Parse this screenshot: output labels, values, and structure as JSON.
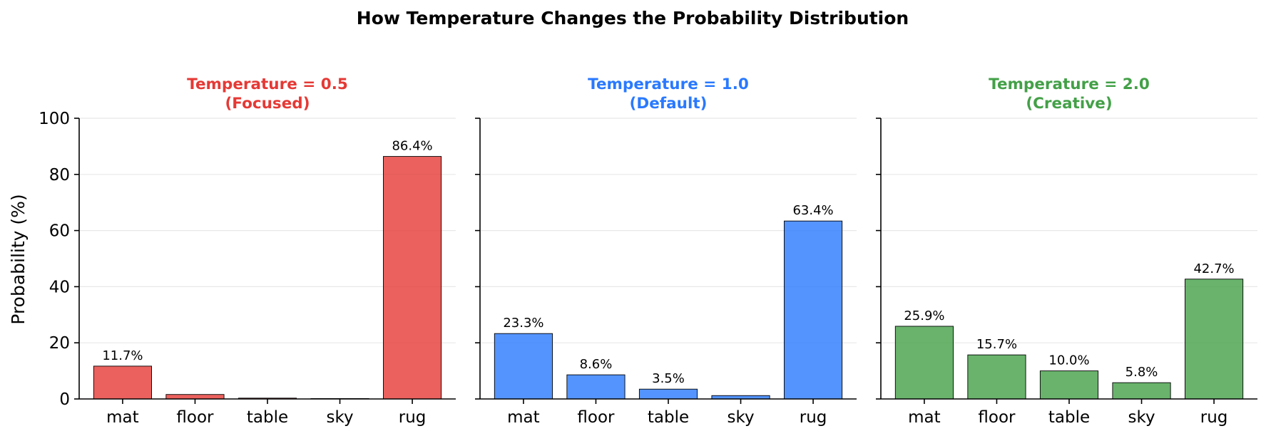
{
  "suptitle": "How Temperature Changes the Probability Distribution",
  "ylabel": "Probability (%)",
  "chart_data": [
    {
      "type": "bar",
      "title": "Temperature = 0.5",
      "subtitle": "(Focused)",
      "color": "#e53935",
      "categories": [
        "mat",
        "floor",
        "table",
        "sky",
        "rug"
      ],
      "values": [
        11.7,
        1.6,
        0.3,
        0.1,
        86.4
      ],
      "labels": [
        "11.7%",
        "",
        "",
        "",
        "86.4%"
      ],
      "ylim": [
        0,
        100
      ],
      "yticks": [
        0,
        20,
        40,
        60,
        80,
        100
      ],
      "grid": true
    },
    {
      "type": "bar",
      "title": "Temperature = 1.0",
      "subtitle": "(Default)",
      "color": "#2979ff",
      "categories": [
        "mat",
        "floor",
        "table",
        "sky",
        "rug"
      ],
      "values": [
        23.3,
        8.6,
        3.5,
        1.2,
        63.4
      ],
      "labels": [
        "23.3%",
        "8.6%",
        "3.5%",
        "",
        "63.4%"
      ],
      "ylim": [
        0,
        100
      ],
      "yticks": [
        0,
        20,
        40,
        60,
        80,
        100
      ],
      "grid": true
    },
    {
      "type": "bar",
      "title": "Temperature = 2.0",
      "subtitle": "(Creative)",
      "color": "#43a047",
      "categories": [
        "mat",
        "floor",
        "table",
        "sky",
        "rug"
      ],
      "values": [
        25.9,
        15.7,
        10.0,
        5.8,
        42.7
      ],
      "labels": [
        "25.9%",
        "15.7%",
        "10.0%",
        "5.8%",
        "42.7%"
      ],
      "ylim": [
        0,
        100
      ],
      "yticks": [
        0,
        20,
        40,
        60,
        80,
        100
      ],
      "grid": true
    }
  ]
}
